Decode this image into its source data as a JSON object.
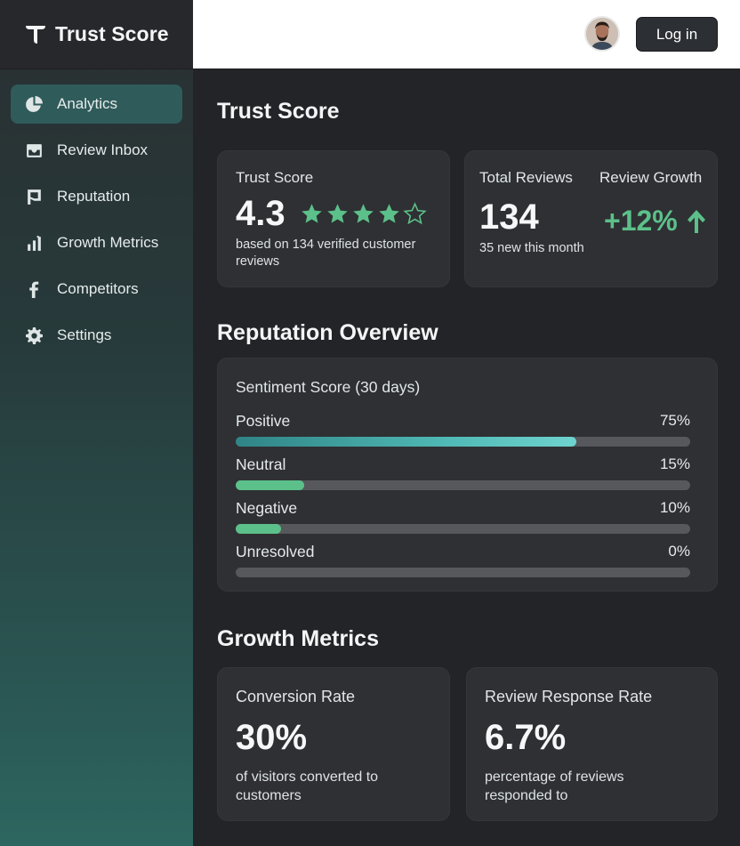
{
  "app": {
    "name": "Trust Score"
  },
  "sidebar": {
    "items": [
      {
        "label": "Analytics",
        "icon": "pie-chart-icon",
        "active": true
      },
      {
        "label": "Review Inbox",
        "icon": "inbox-icon",
        "active": false
      },
      {
        "label": "Reputation",
        "icon": "flag-icon",
        "active": false
      },
      {
        "label": "Growth Metrics",
        "icon": "bar-chart-icon",
        "active": false
      },
      {
        "label": "Competitors",
        "icon": "facebook-icon",
        "active": false
      },
      {
        "label": "Settings",
        "icon": "gear-icon",
        "active": false
      }
    ]
  },
  "header": {
    "login_label": "Log in",
    "avatar_icon": "user-avatar"
  },
  "page": {
    "title": "Trust Score"
  },
  "trust_card": {
    "label": "Trust Score",
    "value": "4.3",
    "rating": 4.3,
    "rating_max": 5,
    "subtext": "based on 134 verified customer reviews",
    "star_color": "#5cc08a"
  },
  "reviews_card": {
    "total_label": "Total Reviews",
    "total_value": "134",
    "total_sub": "35 new this month",
    "growth_label": "Review Growth",
    "growth_value": "+12%",
    "growth_icon": "arrow-up-icon",
    "growth_color": "#5cc08a"
  },
  "reputation": {
    "title": "Reputation Overview",
    "card_label": "Sentiment Score (30 days)",
    "rows": [
      {
        "label": "Positive",
        "pct_text": "75%",
        "value": 0.75,
        "color": "#4fb8b4"
      },
      {
        "label": "Neutral",
        "pct_text": "15%",
        "value": 0.15,
        "color": "#5cc08a"
      },
      {
        "label": "Negative",
        "pct_text": "10%",
        "value": 0.1,
        "color": "#5cc08a"
      },
      {
        "label": "Unresolved",
        "pct_text": "0%",
        "value": 0,
        "color": "#5cc08a"
      }
    ]
  },
  "growth": {
    "title": "Growth Metrics",
    "conversion": {
      "label": "Conversion Rate",
      "value": "30%",
      "sub": "of visitors converted to customers"
    },
    "response": {
      "label": "Review Response Rate",
      "value": "6.7%",
      "sub": "percentage of reviews responded to"
    }
  },
  "colors": {
    "accent": "#5cc08a",
    "active_nav": "#2f5b5a",
    "card_bg": "#2e3033"
  }
}
